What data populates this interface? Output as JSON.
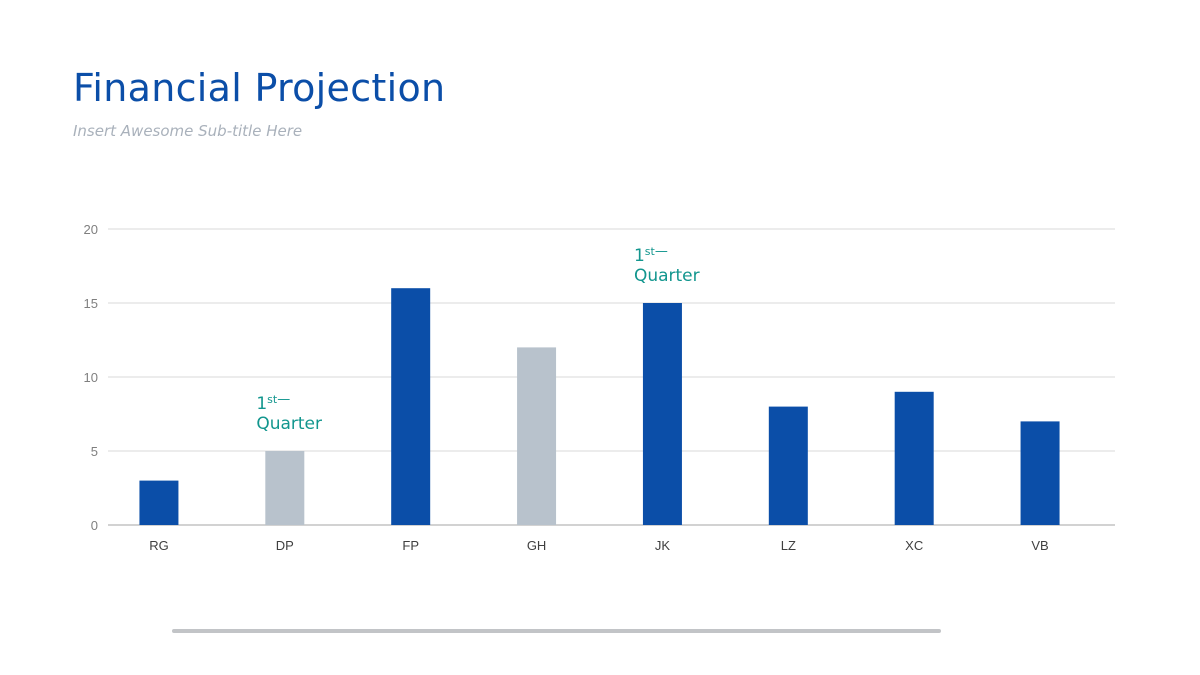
{
  "header": {
    "title": "Financial Projection",
    "subtitle": "Insert Awesome Sub-title Here"
  },
  "colors": {
    "primary": "#0b4ea8",
    "secondary": "#b8c2cc",
    "annotation": "#12968e",
    "grid": "#d9d9d9",
    "axis_text": "#7f7f7f"
  },
  "chart_data": {
    "type": "bar",
    "categories": [
      "RG",
      "DP",
      "FP",
      "GH",
      "JK",
      "LZ",
      "XC",
      "VB"
    ],
    "values": [
      3,
      5,
      16,
      12,
      15,
      8,
      9,
      7
    ],
    "highlight": [
      "primary",
      "secondary",
      "primary",
      "secondary",
      "primary",
      "primary",
      "primary",
      "primary"
    ],
    "ylim": [
      0,
      20
    ],
    "yticks": [
      0,
      5,
      10,
      15,
      20
    ],
    "grid": true,
    "annotations": [
      {
        "category": "DP",
        "value": 5,
        "lines": [
          "1st—",
          "Quarter"
        ]
      },
      {
        "category": "JK",
        "value": 15,
        "lines": [
          "1st—",
          "Quarter"
        ]
      }
    ]
  }
}
